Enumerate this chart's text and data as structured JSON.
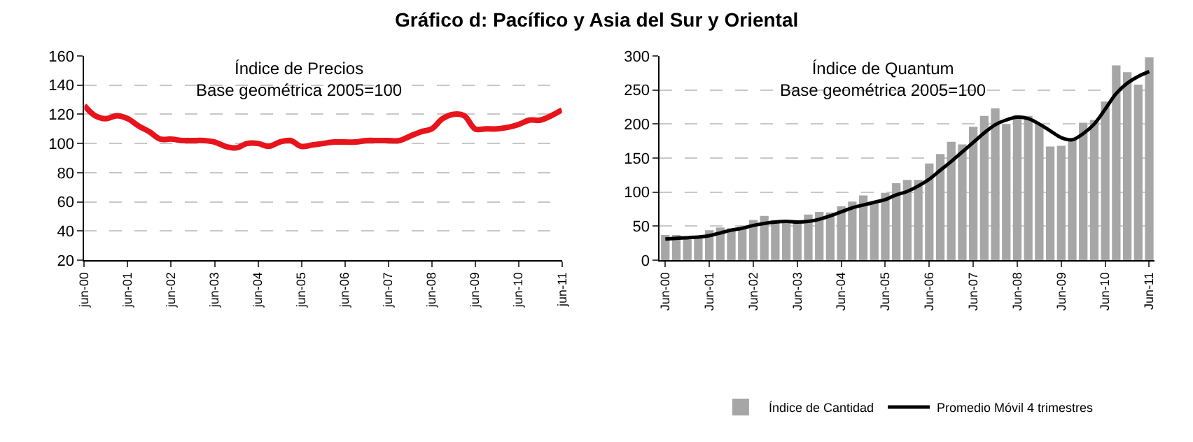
{
  "chart_data": [
    {
      "type": "line",
      "title": "Gráfico d: Pacífico y Asia del Sur y Oriental",
      "subtitle": "Índice de Precios\nBase geométrica 2005=100",
      "categories": [
        "jun-00",
        null,
        null,
        null,
        "jun-01",
        null,
        null,
        null,
        "jun-02",
        null,
        null,
        null,
        "jun-03",
        null,
        null,
        null,
        "jun-04",
        null,
        null,
        null,
        "jun-05",
        null,
        null,
        null,
        "jun-06",
        null,
        null,
        null,
        "jun-07",
        null,
        null,
        null,
        "jun-08",
        null,
        null,
        null,
        "jun-09",
        null,
        null,
        null,
        "jun-10",
        null,
        null,
        null,
        "jun-11"
      ],
      "series": [
        {
          "color": "#e8141c",
          "values": [
            126,
            119,
            117,
            119,
            117,
            112,
            108,
            103,
            103,
            102,
            102,
            102,
            101,
            98,
            97,
            100,
            100,
            98,
            101,
            102,
            98,
            99,
            100,
            101,
            101,
            101,
            102,
            102,
            102,
            102,
            105,
            108,
            110,
            117,
            120,
            119,
            110,
            110,
            110,
            111,
            113,
            116,
            116,
            119,
            123
          ]
        }
      ],
      "ylim": [
        20,
        160
      ],
      "yticks": [
        20,
        40,
        60,
        80,
        100,
        120,
        140,
        160
      ],
      "grid": "y",
      "legend": false
    },
    {
      "type": "bar",
      "subtitle": "Índice de Quantum\nBase geométrica 2005=100",
      "categories": [
        "Jun-00",
        null,
        null,
        null,
        "Jun-01",
        null,
        null,
        null,
        "Jun-02",
        null,
        null,
        null,
        "Jun-03",
        null,
        null,
        null,
        "Jun-04",
        null,
        null,
        null,
        "Jun-05",
        null,
        null,
        null,
        "Jun-06",
        null,
        null,
        null,
        "Jun-07",
        null,
        null,
        null,
        "Jun-08",
        null,
        null,
        null,
        "Jun-09",
        null,
        null,
        null,
        "Jun-10",
        null,
        null,
        null,
        "Jun-11"
      ],
      "series": [
        {
          "name": "Índice de Cantidad",
          "type": "bar",
          "color": "#a6a6a6",
          "values": [
            37,
            37,
            35,
            35,
            44,
            48,
            47,
            48,
            59,
            65,
            59,
            58,
            57,
            67,
            71,
            70,
            79,
            86,
            95,
            85,
            99,
            113,
            118,
            118,
            142,
            156,
            174,
            170,
            196,
            212,
            223,
            200,
            213,
            212,
            200,
            167,
            168,
            178,
            202,
            206,
            233,
            286,
            276,
            258,
            298
          ]
        },
        {
          "name": "Promedio Móvil 4 trimestres",
          "type": "line",
          "color": "#000000",
          "values": [
            31,
            32,
            33,
            34,
            36,
            40,
            44,
            47,
            51,
            54,
            56,
            57,
            56,
            57,
            60,
            65,
            71,
            77,
            81,
            85,
            89,
            96,
            101,
            109,
            119,
            132,
            145,
            159,
            173,
            187,
            199,
            206,
            210,
            208,
            200,
            190,
            180,
            177,
            186,
            200,
            222,
            245,
            260,
            270,
            277
          ]
        }
      ],
      "ylim": [
        0,
        300
      ],
      "yticks": [
        0,
        50,
        100,
        150,
        200,
        250,
        300
      ],
      "grid": "y",
      "legend": "bottom"
    }
  ]
}
